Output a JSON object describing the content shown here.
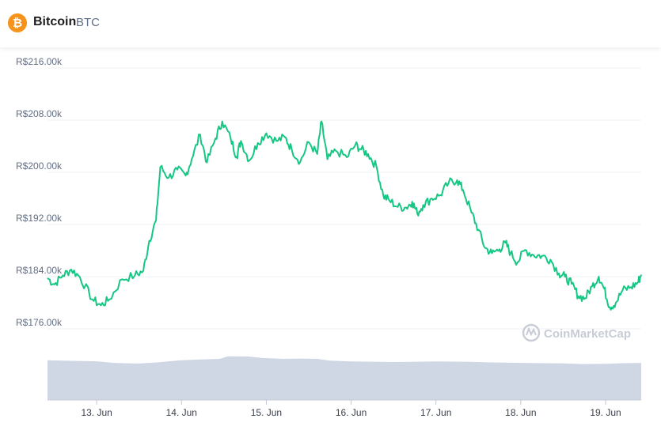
{
  "header": {
    "coin_name": "Bitcoin",
    "coin_symbol": "BTC",
    "coin_glyph": "₿",
    "coin_color": "#f7931a"
  },
  "watermark": {
    "text": "CoinMarketCap",
    "icon": "coinmarketcap-logo-icon"
  },
  "chart_data": {
    "type": "line",
    "title": "",
    "xlabel": "",
    "ylabel": "",
    "currency_prefix": "R$",
    "y_ticks": [
      "R$176.00k",
      "R$184.00k",
      "R$192.00k",
      "R$200.00k",
      "R$208.00k",
      "R$216.00k"
    ],
    "y_tick_values": [
      176000,
      184000,
      192000,
      200000,
      208000,
      216000
    ],
    "ylim": [
      171000,
      217000
    ],
    "x_ticks": [
      "13. Jun",
      "14. Jun",
      "15. Jun",
      "16. Jun",
      "17. Jun",
      "18. Jun",
      "19. Jun"
    ],
    "x_tick_values": [
      13,
      14,
      15,
      16,
      17,
      18,
      19
    ],
    "xlim": [
      12.42,
      19.42
    ],
    "grid": true,
    "line_color": "#16c784",
    "volume_color": "#cfd6e4",
    "series": [
      {
        "values": [
          [
            12.42,
            183800
          ],
          [
            12.5,
            182800
          ],
          [
            12.6,
            184200
          ],
          [
            12.7,
            185100
          ],
          [
            12.8,
            184000
          ],
          [
            12.95,
            180500
          ],
          [
            13.05,
            179600
          ],
          [
            13.15,
            180500
          ],
          [
            13.3,
            183600
          ],
          [
            13.45,
            184200
          ],
          [
            13.55,
            184900
          ],
          [
            13.62,
            189500
          ],
          [
            13.7,
            192600
          ],
          [
            13.75,
            200800
          ],
          [
            13.85,
            199200
          ],
          [
            13.95,
            200400
          ],
          [
            14.05,
            199500
          ],
          [
            14.12,
            202000
          ],
          [
            14.22,
            205800
          ],
          [
            14.3,
            201500
          ],
          [
            14.4,
            205200
          ],
          [
            14.48,
            207800
          ],
          [
            14.58,
            205200
          ],
          [
            14.65,
            202400
          ],
          [
            14.7,
            204800
          ],
          [
            14.8,
            201800
          ],
          [
            14.9,
            204500
          ],
          [
            15.0,
            206000
          ],
          [
            15.12,
            204800
          ],
          [
            15.22,
            205400
          ],
          [
            15.3,
            203500
          ],
          [
            15.4,
            201600
          ],
          [
            15.5,
            204600
          ],
          [
            15.6,
            202800
          ],
          [
            15.65,
            207800
          ],
          [
            15.72,
            202000
          ],
          [
            15.82,
            203300
          ],
          [
            15.95,
            202300
          ],
          [
            16.05,
            204200
          ],
          [
            16.12,
            203500
          ],
          [
            16.2,
            202800
          ],
          [
            16.3,
            200800
          ],
          [
            16.38,
            196400
          ],
          [
            16.45,
            195700
          ],
          [
            16.55,
            194700
          ],
          [
            16.65,
            194600
          ],
          [
            16.72,
            195500
          ],
          [
            16.78,
            193700
          ],
          [
            16.85,
            195000
          ],
          [
            16.95,
            196000
          ],
          [
            17.05,
            196500
          ],
          [
            17.15,
            198400
          ],
          [
            17.25,
            198800
          ],
          [
            17.32,
            197300
          ],
          [
            17.42,
            193800
          ],
          [
            17.5,
            191200
          ],
          [
            17.58,
            188400
          ],
          [
            17.66,
            187600
          ],
          [
            17.75,
            188200
          ],
          [
            17.82,
            189200
          ],
          [
            17.88,
            187600
          ],
          [
            17.96,
            186200
          ],
          [
            18.05,
            188100
          ],
          [
            18.15,
            187300
          ],
          [
            18.25,
            187200
          ],
          [
            18.35,
            186600
          ],
          [
            18.45,
            184500
          ],
          [
            18.52,
            184000
          ],
          [
            18.6,
            182900
          ],
          [
            18.68,
            181000
          ],
          [
            18.76,
            180700
          ],
          [
            18.84,
            182500
          ],
          [
            18.92,
            184000
          ],
          [
            18.98,
            182200
          ],
          [
            19.05,
            179300
          ],
          [
            19.12,
            180000
          ],
          [
            19.2,
            181900
          ],
          [
            19.3,
            182400
          ],
          [
            19.38,
            183100
          ],
          [
            19.42,
            184300
          ]
        ]
      }
    ],
    "volume": {
      "relative_values": [
        [
          12.42,
          0.92
        ],
        [
          12.6,
          0.9
        ],
        [
          13.0,
          0.86
        ],
        [
          13.2,
          0.77
        ],
        [
          13.4,
          0.74
        ],
        [
          13.5,
          0.73
        ],
        [
          13.7,
          0.79
        ],
        [
          13.85,
          0.86
        ],
        [
          14.0,
          0.92
        ],
        [
          14.2,
          0.96
        ],
        [
          14.45,
          1.0
        ],
        [
          14.55,
          1.15
        ],
        [
          14.8,
          1.13
        ],
        [
          14.95,
          1.05
        ],
        [
          15.2,
          1.0
        ],
        [
          15.4,
          1.02
        ],
        [
          15.6,
          1.0
        ],
        [
          15.75,
          0.9
        ],
        [
          16.0,
          0.85
        ],
        [
          16.5,
          0.82
        ],
        [
          17.0,
          0.85
        ],
        [
          17.4,
          0.83
        ],
        [
          17.6,
          0.8
        ],
        [
          18.0,
          0.77
        ],
        [
          18.5,
          0.74
        ],
        [
          18.75,
          0.7
        ],
        [
          19.0,
          0.72
        ],
        [
          19.2,
          0.75
        ],
        [
          19.42,
          0.77
        ]
      ]
    }
  }
}
